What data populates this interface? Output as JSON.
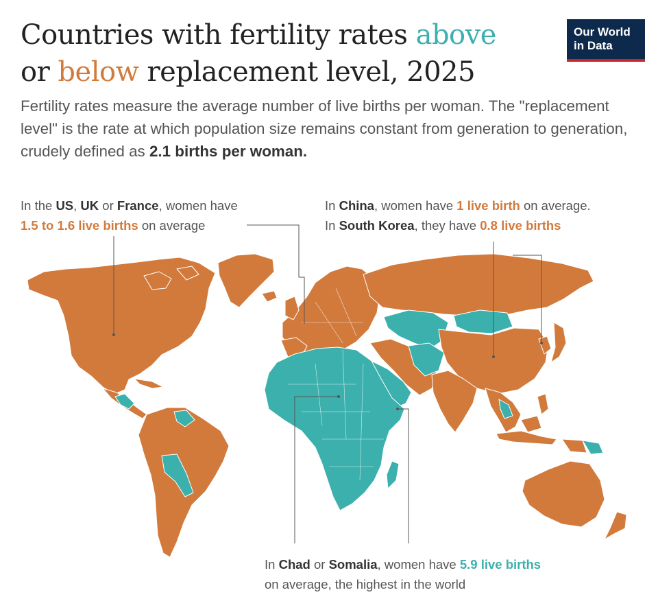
{
  "title": {
    "part1": "Countries with fertility rates ",
    "above": "above",
    "part2": "or ",
    "below": "below",
    "part3": " replacement level, 2025"
  },
  "logo": {
    "line1": "Our World",
    "line2": "in Data"
  },
  "subtitle": {
    "text": "Fertility rates measure the average number of live births per woman. The \"replacement level\" is the rate at which population size remains constant from generation to generation, crudely defined as ",
    "bold": "2.1 births per woman."
  },
  "annotations": {
    "us": {
      "l1a": "In the ",
      "us": "US",
      "sep1": ", ",
      "uk": "UK",
      "sep2": " or ",
      "fr": "France",
      "l1b": ", women have",
      "value": "1.5 to 1.6 live births",
      "l2b": " on average"
    },
    "china": {
      "l1a": "In ",
      "china": "China",
      "l1b": ", women have ",
      "value1": "1 live birth",
      "l1c": " on average.",
      "l2a": "In ",
      "korea": "South Korea",
      "l2b": ", they have ",
      "value2": "0.8 live births"
    },
    "chad": {
      "l1a": "In ",
      "chad": "Chad",
      "l1b": " or ",
      "somalia": "Somalia",
      "l1c": ", women have ",
      "value": "5.9 live births",
      "l2": "on average, the highest in the world"
    }
  },
  "colors": {
    "above": "#3bb0ad",
    "below": "#d27a3c",
    "border": "#ffffff",
    "title": "#222222"
  },
  "legend_categories": [
    "above",
    "below"
  ]
}
